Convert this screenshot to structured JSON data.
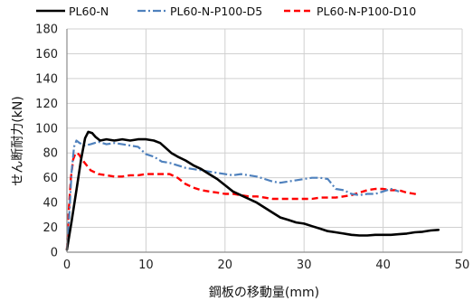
{
  "chart_data": {
    "type": "line",
    "title": "",
    "xlabel": "鋼板の移動量(mm)",
    "ylabel": "せん断耐力(kN)",
    "xlim": [
      0,
      50
    ],
    "ylim": [
      0,
      180
    ],
    "x_ticks": [
      "0",
      "10",
      "20",
      "30",
      "40",
      "50"
    ],
    "y_ticks": [
      "0",
      "20",
      "40",
      "60",
      "80",
      "100",
      "120",
      "140",
      "160",
      "180"
    ],
    "grid": true,
    "legend_position": "top",
    "series": [
      {
        "name": "PL60-N",
        "color": "#000000",
        "style": "solid",
        "points": [
          [
            0,
            2
          ],
          [
            0.6,
            25
          ],
          [
            1.2,
            50
          ],
          [
            1.8,
            75
          ],
          [
            2.3,
            92
          ],
          [
            2.7,
            97
          ],
          [
            3.2,
            96
          ],
          [
            3.6,
            93
          ],
          [
            4.2,
            90
          ],
          [
            5,
            91
          ],
          [
            6,
            90
          ],
          [
            7,
            91
          ],
          [
            8,
            90
          ],
          [
            9,
            91
          ],
          [
            10,
            91
          ],
          [
            11,
            90
          ],
          [
            11.8,
            88
          ],
          [
            12.5,
            84
          ],
          [
            13.2,
            80
          ],
          [
            14,
            77
          ],
          [
            15,
            74
          ],
          [
            16,
            70
          ],
          [
            17,
            67
          ],
          [
            18,
            63
          ],
          [
            19,
            59
          ],
          [
            20,
            54
          ],
          [
            21,
            49
          ],
          [
            22,
            46
          ],
          [
            23,
            43
          ],
          [
            24,
            40
          ],
          [
            25,
            36
          ],
          [
            26,
            32
          ],
          [
            27,
            28
          ],
          [
            28,
            26
          ],
          [
            29,
            24
          ],
          [
            30,
            23
          ],
          [
            31,
            21
          ],
          [
            32,
            19
          ],
          [
            33,
            17
          ],
          [
            34,
            16
          ],
          [
            35,
            15
          ],
          [
            36,
            14
          ],
          [
            37,
            13.5
          ],
          [
            38,
            13.5
          ],
          [
            39,
            14
          ],
          [
            40,
            14
          ],
          [
            41,
            14
          ],
          [
            42,
            14.5
          ],
          [
            43,
            15
          ],
          [
            44,
            16
          ],
          [
            45,
            16.5
          ],
          [
            46,
            17.5
          ],
          [
            47,
            18
          ]
        ]
      },
      {
        "name": "PL60-N-P100-D5",
        "color": "#4f81bd",
        "style": "dashdot",
        "points": [
          [
            0,
            2
          ],
          [
            0.3,
            30
          ],
          [
            0.6,
            65
          ],
          [
            0.9,
            85
          ],
          [
            1.2,
            90
          ],
          [
            1.6,
            88
          ],
          [
            2.2,
            86
          ],
          [
            3,
            87
          ],
          [
            4,
            89
          ],
          [
            5,
            87
          ],
          [
            6,
            88
          ],
          [
            7,
            87
          ],
          [
            8,
            86
          ],
          [
            9,
            85
          ],
          [
            10,
            79
          ],
          [
            11,
            77
          ],
          [
            12,
            73
          ],
          [
            13,
            72
          ],
          [
            14,
            70
          ],
          [
            15,
            68
          ],
          [
            16,
            67
          ],
          [
            17,
            66
          ],
          [
            18,
            65
          ],
          [
            19,
            64
          ],
          [
            20,
            63
          ],
          [
            21,
            62
          ],
          [
            22,
            63
          ],
          [
            23,
            62
          ],
          [
            24,
            61
          ],
          [
            25,
            59
          ],
          [
            26,
            57
          ],
          [
            27,
            56
          ],
          [
            28,
            57
          ],
          [
            29,
            58
          ],
          [
            30,
            59
          ],
          [
            31,
            60
          ],
          [
            32,
            60
          ],
          [
            33,
            59
          ],
          [
            34,
            51
          ],
          [
            35,
            50
          ],
          [
            36,
            47
          ],
          [
            37,
            46
          ],
          [
            38,
            47
          ],
          [
            39,
            47
          ],
          [
            40,
            49
          ],
          [
            41,
            51
          ],
          [
            42,
            49
          ]
        ]
      },
      {
        "name": "PL60-N-P100-D10",
        "color": "#ff0000",
        "style": "dashed",
        "points": [
          [
            0,
            2
          ],
          [
            0.2,
            30
          ],
          [
            0.5,
            60
          ],
          [
            0.8,
            75
          ],
          [
            1.1,
            80
          ],
          [
            1.5,
            79
          ],
          [
            2,
            74
          ],
          [
            3,
            66
          ],
          [
            4,
            63
          ],
          [
            5,
            62
          ],
          [
            6,
            61
          ],
          [
            7,
            61
          ],
          [
            8,
            62
          ],
          [
            9,
            62
          ],
          [
            10,
            63
          ],
          [
            11,
            63
          ],
          [
            12,
            63
          ],
          [
            13,
            63
          ],
          [
            14,
            60
          ],
          [
            15,
            55
          ],
          [
            16,
            52
          ],
          [
            17,
            50
          ],
          [
            18,
            49
          ],
          [
            19,
            48
          ],
          [
            20,
            47
          ],
          [
            21,
            47
          ],
          [
            22,
            46
          ],
          [
            23,
            45
          ],
          [
            24,
            45
          ],
          [
            25,
            44
          ],
          [
            26,
            43
          ],
          [
            27,
            43
          ],
          [
            28,
            43
          ],
          [
            29,
            43
          ],
          [
            30,
            43
          ],
          [
            31,
            43
          ],
          [
            32,
            44
          ],
          [
            33,
            44
          ],
          [
            34,
            44
          ],
          [
            35,
            45
          ],
          [
            36,
            46
          ],
          [
            37,
            48
          ],
          [
            38,
            50
          ],
          [
            39,
            51
          ],
          [
            40,
            51
          ],
          [
            41,
            50
          ],
          [
            42,
            50
          ],
          [
            43,
            48
          ],
          [
            44,
            47
          ],
          [
            44.5,
            46
          ]
        ]
      }
    ]
  }
}
